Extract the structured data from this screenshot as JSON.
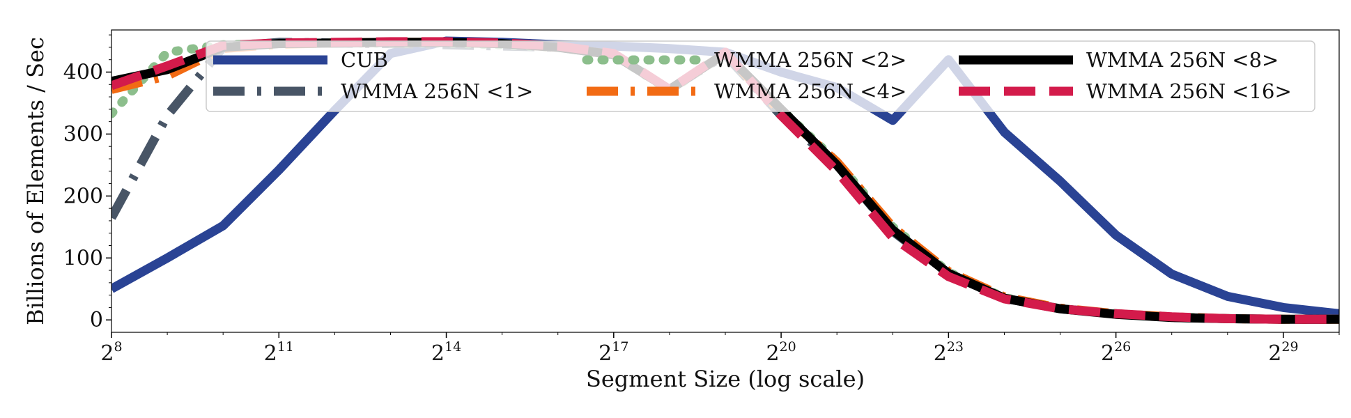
{
  "chart_data": {
    "type": "line",
    "title": "",
    "xlabel": "Segment Size (log scale)",
    "ylabel": "Billions of Elements / Sec",
    "x_scale": "log2",
    "x_exponents": [
      8,
      9,
      10,
      11,
      12,
      13,
      14,
      15,
      16,
      17,
      18,
      19,
      20,
      21,
      22,
      23,
      24,
      25,
      26,
      27,
      28,
      29,
      30
    ],
    "x_tick_exponents": [
      8,
      11,
      14,
      17,
      20,
      23,
      26,
      29
    ],
    "x_tick_base": "2",
    "xlim_exponent": [
      8,
      30
    ],
    "y_ticks": [
      0,
      100,
      200,
      300,
      400
    ],
    "ylim": [
      -20,
      468
    ],
    "grid": false,
    "legend_position": "top",
    "series": [
      {
        "name": "CUB",
        "color": "#2a4394",
        "style": "solid",
        "values": [
          50,
          100,
          152,
          242,
          338,
          430,
          450,
          448,
          444,
          442,
          438,
          432,
          400,
          375,
          322,
          420,
          303,
          224,
          137,
          74,
          38,
          20,
          10
        ]
      },
      {
        "name": "WMMA 256N <1>",
        "color": "#485566",
        "style": "dash-dot",
        "values": [
          165,
          330,
          440,
          448,
          447,
          446,
          444,
          442,
          440,
          428,
          372,
          428,
          330,
          250,
          143,
          75,
          35,
          18,
          10,
          4,
          2,
          1,
          1
        ]
      },
      {
        "name": "WMMA 256N <2>",
        "color": "#8cbe8c",
        "style": "dotted",
        "values": [
          333,
          432,
          444,
          446,
          447,
          447,
          447,
          444,
          440,
          428,
          370,
          430,
          340,
          255,
          150,
          77,
          36,
          18,
          10,
          5,
          2,
          1,
          1
        ]
      },
      {
        "name": "WMMA 256N <4>",
        "color": "#f26b14",
        "style": "dash-dot",
        "values": [
          372,
          394,
          438,
          445,
          447,
          448,
          448,
          446,
          440,
          428,
          372,
          430,
          335,
          255,
          150,
          78,
          37,
          19,
          10,
          5,
          2,
          1,
          1
        ]
      },
      {
        "name": "WMMA 256N <8>",
        "color": "#000000",
        "style": "solid",
        "values": [
          385,
          404,
          440,
          446,
          447,
          448,
          448,
          446,
          440,
          428,
          372,
          430,
          340,
          250,
          145,
          75,
          35,
          18,
          9,
          4,
          2,
          1,
          1
        ]
      },
      {
        "name": "WMMA 256N <16>",
        "color": "#d31b4b",
        "style": "dashed",
        "values": [
          378,
          410,
          443,
          447,
          448,
          449,
          449,
          447,
          442,
          430,
          372,
          432,
          330,
          240,
          133,
          70,
          34,
          18,
          10,
          5,
          2,
          1,
          1
        ]
      }
    ]
  }
}
